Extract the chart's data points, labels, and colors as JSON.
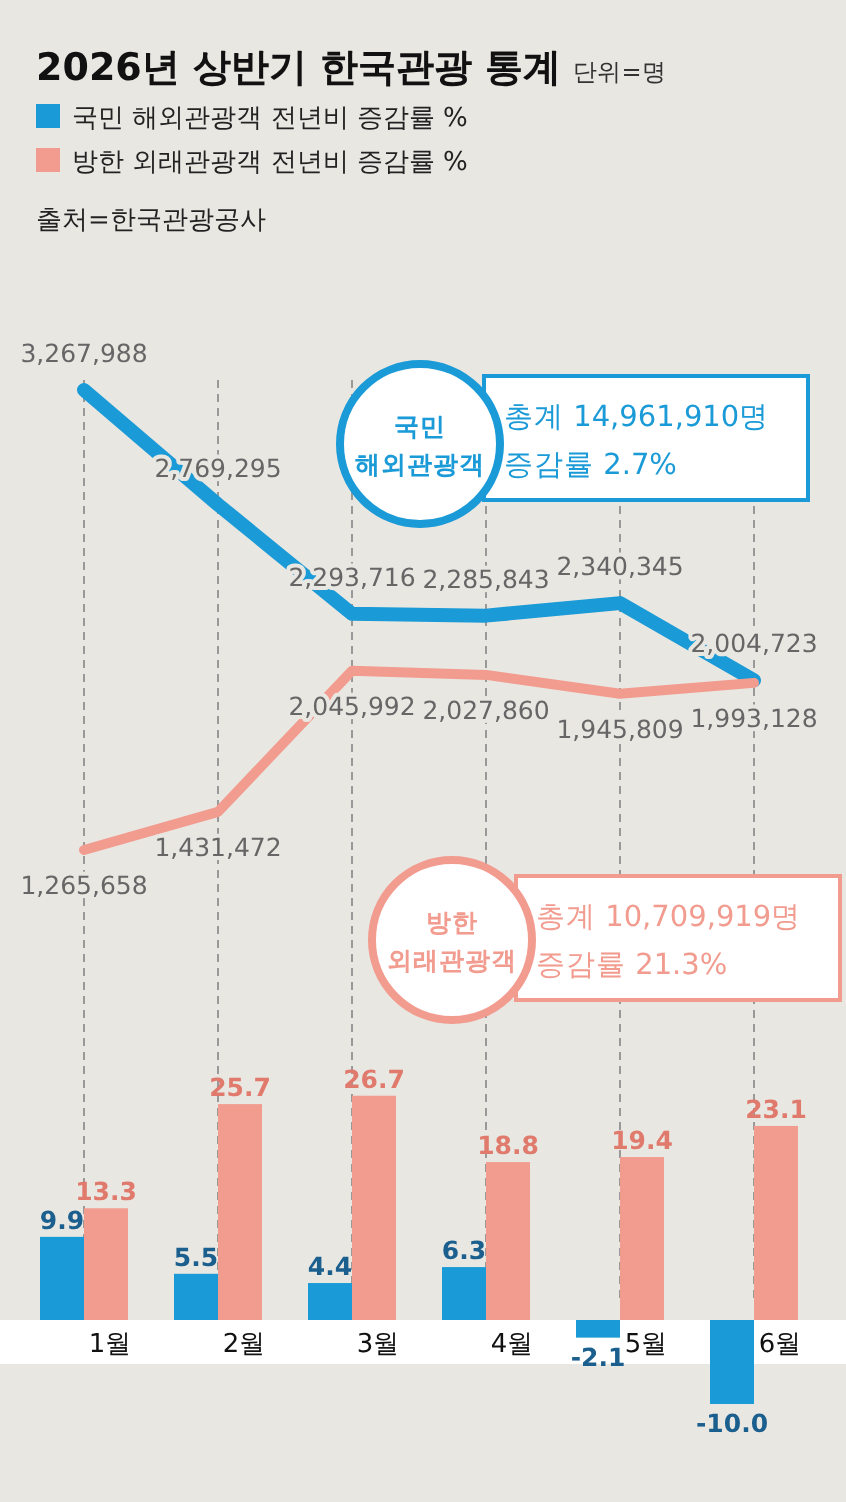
{
  "chart_data": [
    {
      "type": "line",
      "title": "2026년 상반기 한국관광 통계",
      "subtitle": "단위=명",
      "annotations": [
        "출처=한국관광공사",
        "총계  14,961,910명",
        "증감률 2.7%",
        "총계  10,709,919명",
        "증감률 21.3%"
      ],
      "categories": [
        null,
        null,
        null,
        null,
        null,
        null
      ],
      "series": [
        {
          "name": "국민 해외관광객",
          "color": "#1a9ad6",
          "values": [
            3267988,
            2769295,
            2293716,
            2285843,
            2340345,
            2004723
          ],
          "value_labels": [
            "3,267,988",
            "2,769,295",
            "2,293,716",
            "2,285,843",
            "2,340,345",
            "2,004,723"
          ]
        },
        {
          "name": "방한 외래관광객",
          "color": "#f29b8f",
          "values": [
            1265658,
            1431472,
            2045992,
            2027860,
            1945809,
            1993128
          ],
          "value_labels": [
            "1,265,658",
            "1,431,472",
            "2,045,992",
            "2,027,860",
            "1,945,809",
            "1,993,128"
          ]
        }
      ],
      "grid": "x"
    },
    {
      "type": "bar",
      "categories": [
        "1월",
        "2월",
        "3월",
        "4월",
        "5월",
        "6월"
      ],
      "series": [
        {
          "name": "국민 해외관광객 전년비 증감률 %",
          "color": "#1a9ad6",
          "values": [
            9.9,
            5.5,
            4.4,
            6.3,
            -2.1,
            -10.0
          ],
          "value_labels": [
            "9.9",
            "5.5",
            "4.4",
            "6.3",
            "-2.1",
            "-10.0"
          ]
        },
        {
          "name": "방한 외래관광객 전년비 증감률 %",
          "color": "#f29b8f",
          "values": [
            13.3,
            25.7,
            26.7,
            18.8,
            19.4,
            23.1
          ],
          "value_labels": [
            "13.3",
            "25.7",
            "26.7",
            "18.8",
            "19.4",
            "23.1"
          ]
        }
      ],
      "legend": "top left"
    }
  ]
}
